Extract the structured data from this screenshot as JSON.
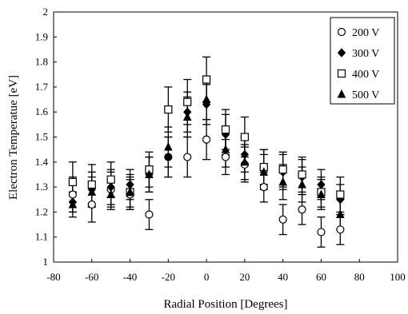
{
  "chart_data": {
    "type": "scatter",
    "xlabel": "Radial Position [Degrees]",
    "ylabel": "Electron Temperatue [eV]",
    "xlim": [
      -80,
      100
    ],
    "ylim": [
      1,
      2
    ],
    "x_ticks": [
      "-80",
      "-60",
      "-40",
      "-20",
      "0",
      "20",
      "40",
      "60",
      "80",
      "100"
    ],
    "y_ticks": [
      "1",
      "1.1",
      "1.2",
      "1.3",
      "1.4",
      "1.5",
      "1.6",
      "1.7",
      "1.8",
      "1.9",
      "2"
    ],
    "grid": false,
    "legend_position": "top-right",
    "series": [
      {
        "name": "200 V",
        "marker": "circle-open",
        "x": [
          -70,
          -60,
          -50,
          -40,
          -30,
          -20,
          -10,
          0,
          10,
          20,
          30,
          40,
          50,
          60,
          70
        ],
        "y": [
          1.27,
          1.23,
          1.29,
          1.27,
          1.19,
          1.42,
          1.42,
          1.49,
          1.42,
          1.39,
          1.3,
          1.17,
          1.21,
          1.12,
          1.13
        ],
        "err": [
          0.07,
          0.07,
          0.07,
          0.06,
          0.06,
          0.08,
          0.08,
          0.08,
          0.07,
          0.07,
          0.06,
          0.06,
          0.06,
          0.06,
          0.06
        ]
      },
      {
        "name": "300 V",
        "marker": "diamond-filled",
        "x": [
          -70,
          -60,
          -50,
          -40,
          -30,
          -20,
          -10,
          0,
          10,
          20,
          30,
          40,
          50,
          60,
          70
        ],
        "y": [
          1.24,
          1.29,
          1.3,
          1.31,
          1.35,
          1.42,
          1.6,
          1.63,
          1.51,
          1.43,
          1.38,
          1.36,
          1.34,
          1.31,
          1.25
        ],
        "err": [
          0.04,
          0.07,
          0.07,
          0.06,
          0.07,
          0.08,
          0.08,
          0.08,
          0.08,
          0.07,
          0.07,
          0.07,
          0.07,
          0.06,
          0.06
        ]
      },
      {
        "name": "400 V",
        "marker": "square-open",
        "x": [
          -70,
          -60,
          -50,
          -40,
          -30,
          -20,
          -10,
          0,
          10,
          20,
          30,
          40,
          50,
          60,
          70
        ],
        "y": [
          1.32,
          1.31,
          1.33,
          1.28,
          1.37,
          1.61,
          1.64,
          1.73,
          1.53,
          1.5,
          1.38,
          1.37,
          1.35,
          1.28,
          1.27
        ],
        "err": [
          0.08,
          0.08,
          0.07,
          0.07,
          0.07,
          0.09,
          0.09,
          0.09,
          0.08,
          0.08,
          0.07,
          0.07,
          0.07,
          0.06,
          0.07
        ]
      },
      {
        "name": "500 V",
        "marker": "triangle-filled",
        "x": [
          -70,
          -60,
          -50,
          -40,
          -30,
          -20,
          -10,
          0,
          10,
          20,
          30,
          40,
          50,
          60,
          70
        ],
        "y": [
          1.23,
          1.28,
          1.27,
          1.28,
          1.35,
          1.46,
          1.58,
          1.65,
          1.45,
          1.4,
          1.36,
          1.32,
          1.31,
          1.27,
          1.19
        ],
        "err": [
          0.05,
          0.06,
          0.06,
          0.06,
          0.07,
          0.08,
          0.08,
          0.08,
          0.07,
          0.07,
          0.07,
          0.07,
          0.07,
          0.06,
          0.06
        ]
      }
    ]
  }
}
